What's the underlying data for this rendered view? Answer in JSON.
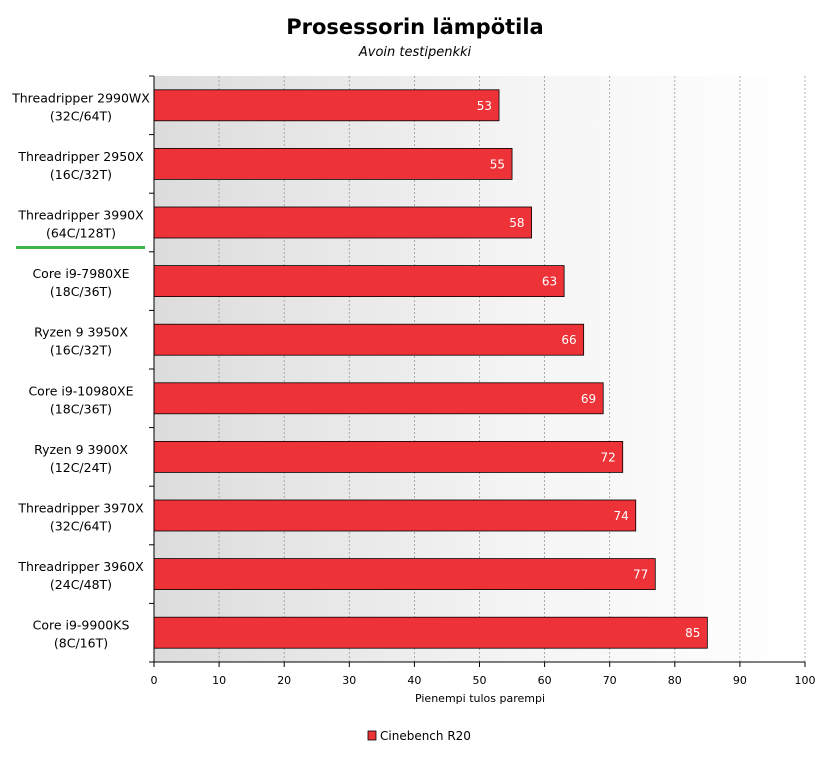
{
  "chart_data": {
    "type": "bar",
    "orientation": "horizontal",
    "title": "Prosessorin lämpötila",
    "subtitle": "Avoin testipenkki",
    "xlabel": "Pienempi tulos parempi",
    "xlim": [
      0,
      100
    ],
    "xticks": [
      0,
      10,
      20,
      30,
      40,
      50,
      60,
      70,
      80,
      90,
      100
    ],
    "grid": true,
    "legend_position": "bottom",
    "categories": [
      [
        "Threadripper 2990WX",
        "(32C/64T)"
      ],
      [
        "Threadripper 2950X",
        "(16C/32T)"
      ],
      [
        "Threadripper 3990X",
        "(64C/128T)"
      ],
      [
        "Core i9-7980XE",
        "(18C/36T)"
      ],
      [
        "Ryzen 9 3950X",
        "(16C/32T)"
      ],
      [
        "Core i9-10980XE",
        "(18C/36T)"
      ],
      [
        "Ryzen 9 3900X",
        "(12C/24T)"
      ],
      [
        "Threadripper 3970X",
        "(32C/64T)"
      ],
      [
        "Threadripper 3960X",
        "(24C/48T)"
      ],
      [
        "Core i9-9900KS",
        "(8C/16T)"
      ]
    ],
    "highlighted_category": "Threadripper 3990X",
    "highlight_color": "#3ab54a",
    "series": [
      {
        "name": "Cinebench R20",
        "color": "#ee3338",
        "values": [
          53,
          55,
          58,
          63,
          66,
          69,
          72,
          74,
          77,
          85
        ]
      }
    ]
  }
}
